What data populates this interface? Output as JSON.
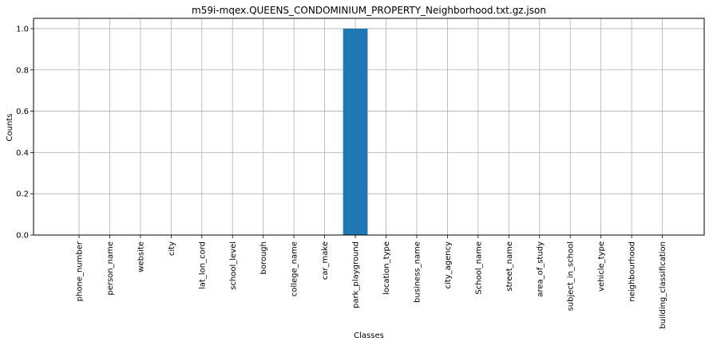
{
  "chart_data": {
    "type": "bar",
    "title": "m59i-mqex.QUEENS_CONDOMINIUM_PROPERTY_Neighborhood.txt.gz.json",
    "xlabel": "Classes",
    "ylabel": "Counts",
    "categories": [
      "phone_number",
      "person_name",
      "website",
      "city",
      "lat_lon_cord",
      "school_level",
      "borough",
      "college_name",
      "car_make",
      "park_playground",
      "location_type",
      "business_name",
      "city_agency",
      "School_name",
      "street_name",
      "area_of_study",
      "subject_in_school",
      "vehicle_type",
      "neighbourhood",
      "building_classification"
    ],
    "values": [
      0,
      0,
      0,
      0,
      0,
      0,
      0,
      0,
      0,
      1,
      0,
      0,
      0,
      0,
      0,
      0,
      0,
      0,
      0,
      0
    ],
    "ylim": [
      0,
      1.05
    ],
    "yticks": [
      0.0,
      0.2,
      0.4,
      0.6,
      0.8,
      1.0
    ],
    "ytick_labels": [
      "0.0",
      "0.2",
      "0.4",
      "0.6",
      "0.8",
      "1.0"
    ],
    "grid": true,
    "bar_color": "#1f77b4"
  }
}
